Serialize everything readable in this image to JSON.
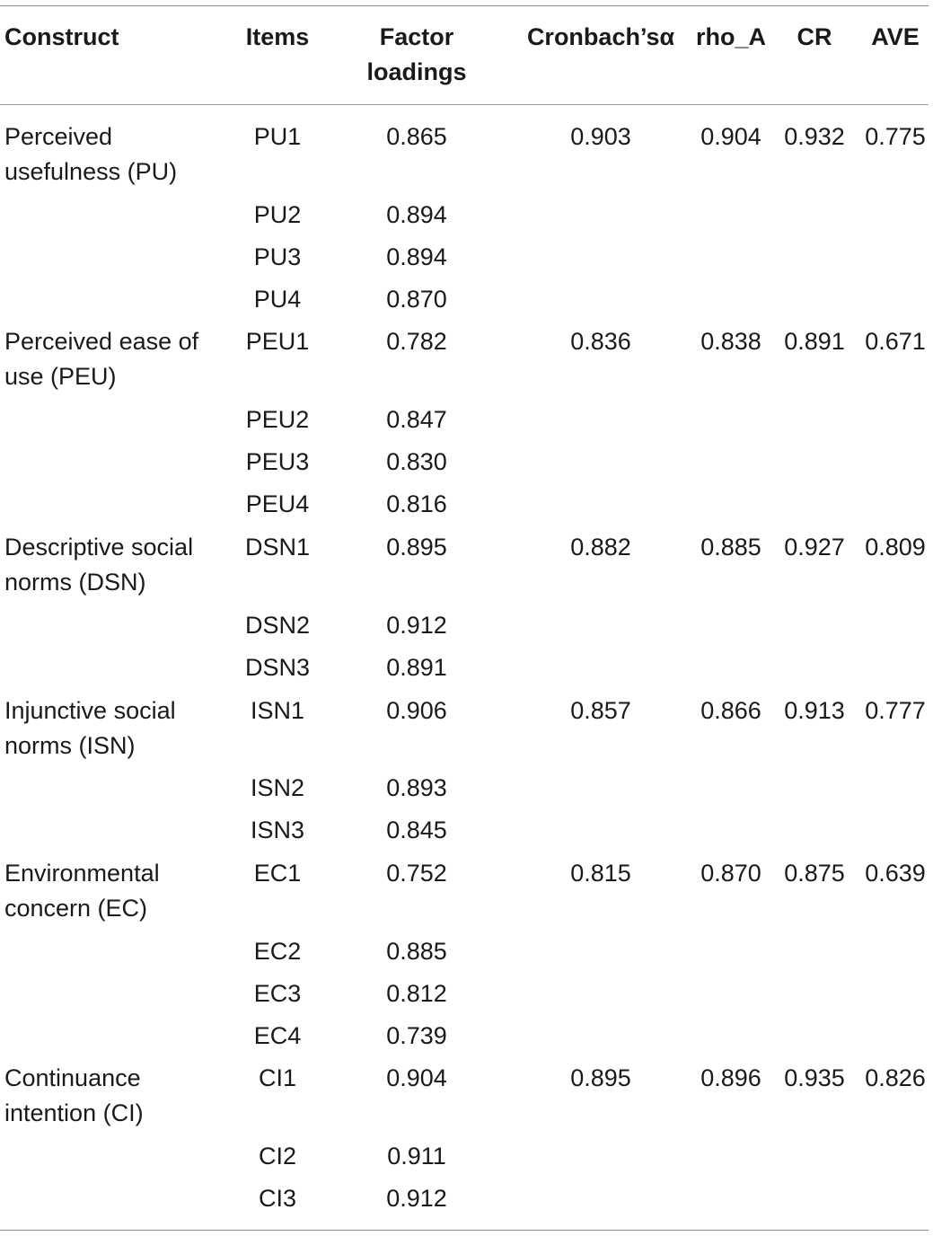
{
  "header": {
    "construct": "Construct",
    "items": "Items",
    "factor_loadings": "Factor loadings",
    "cronbach_alpha": "Cronbach’sα",
    "rho_a": "rho_A",
    "cr": "CR",
    "ave": "AVE"
  },
  "rows": [
    {
      "construct": "Perceived usefulness (PU)",
      "item": "PU1",
      "loading": "0.865",
      "alpha": "0.903",
      "rho_a": "0.904",
      "cr": "0.932",
      "ave": "0.775"
    },
    {
      "construct": "",
      "item": "PU2",
      "loading": "0.894",
      "alpha": "",
      "rho_a": "",
      "cr": "",
      "ave": ""
    },
    {
      "construct": "",
      "item": "PU3",
      "loading": "0.894",
      "alpha": "",
      "rho_a": "",
      "cr": "",
      "ave": ""
    },
    {
      "construct": "",
      "item": "PU4",
      "loading": "0.870",
      "alpha": "",
      "rho_a": "",
      "cr": "",
      "ave": ""
    },
    {
      "construct": "Perceived ease of use (PEU)",
      "item": "PEU1",
      "loading": "0.782",
      "alpha": "0.836",
      "rho_a": "0.838",
      "cr": "0.891",
      "ave": "0.671"
    },
    {
      "construct": "",
      "item": "PEU2",
      "loading": "0.847",
      "alpha": "",
      "rho_a": "",
      "cr": "",
      "ave": ""
    },
    {
      "construct": "",
      "item": "PEU3",
      "loading": "0.830",
      "alpha": "",
      "rho_a": "",
      "cr": "",
      "ave": ""
    },
    {
      "construct": "",
      "item": "PEU4",
      "loading": "0.816",
      "alpha": "",
      "rho_a": "",
      "cr": "",
      "ave": ""
    },
    {
      "construct": "Descriptive social norms (DSN)",
      "item": "DSN1",
      "loading": "0.895",
      "alpha": "0.882",
      "rho_a": "0.885",
      "cr": "0.927",
      "ave": "0.809"
    },
    {
      "construct": "",
      "item": "DSN2",
      "loading": "0.912",
      "alpha": "",
      "rho_a": "",
      "cr": "",
      "ave": ""
    },
    {
      "construct": "",
      "item": "DSN3",
      "loading": "0.891",
      "alpha": "",
      "rho_a": "",
      "cr": "",
      "ave": ""
    },
    {
      "construct": "Injunctive social norms (ISN)",
      "item": "ISN1",
      "loading": "0.906",
      "alpha": "0.857",
      "rho_a": "0.866",
      "cr": "0.913",
      "ave": "0.777"
    },
    {
      "construct": "",
      "item": "ISN2",
      "loading": "0.893",
      "alpha": "",
      "rho_a": "",
      "cr": "",
      "ave": ""
    },
    {
      "construct": "",
      "item": "ISN3",
      "loading": "0.845",
      "alpha": "",
      "rho_a": "",
      "cr": "",
      "ave": ""
    },
    {
      "construct": "Environmental concern (EC)",
      "item": "EC1",
      "loading": "0.752",
      "alpha": "0.815",
      "rho_a": "0.870",
      "cr": "0.875",
      "ave": "0.639"
    },
    {
      "construct": "",
      "item": "EC2",
      "loading": "0.885",
      "alpha": "",
      "rho_a": "",
      "cr": "",
      "ave": ""
    },
    {
      "construct": "",
      "item": "EC3",
      "loading": "0.812",
      "alpha": "",
      "rho_a": "",
      "cr": "",
      "ave": ""
    },
    {
      "construct": "",
      "item": "EC4",
      "loading": "0.739",
      "alpha": "",
      "rho_a": "",
      "cr": "",
      "ave": ""
    },
    {
      "construct": "Continuance intention (CI)",
      "item": "CI1",
      "loading": "0.904",
      "alpha": "0.895",
      "rho_a": "0.896",
      "cr": "0.935",
      "ave": "0.826"
    },
    {
      "construct": "",
      "item": "CI2",
      "loading": "0.911",
      "alpha": "",
      "rho_a": "",
      "cr": "",
      "ave": ""
    },
    {
      "construct": "",
      "item": "CI3",
      "loading": "0.912",
      "alpha": "",
      "rho_a": "",
      "cr": "",
      "ave": ""
    }
  ]
}
